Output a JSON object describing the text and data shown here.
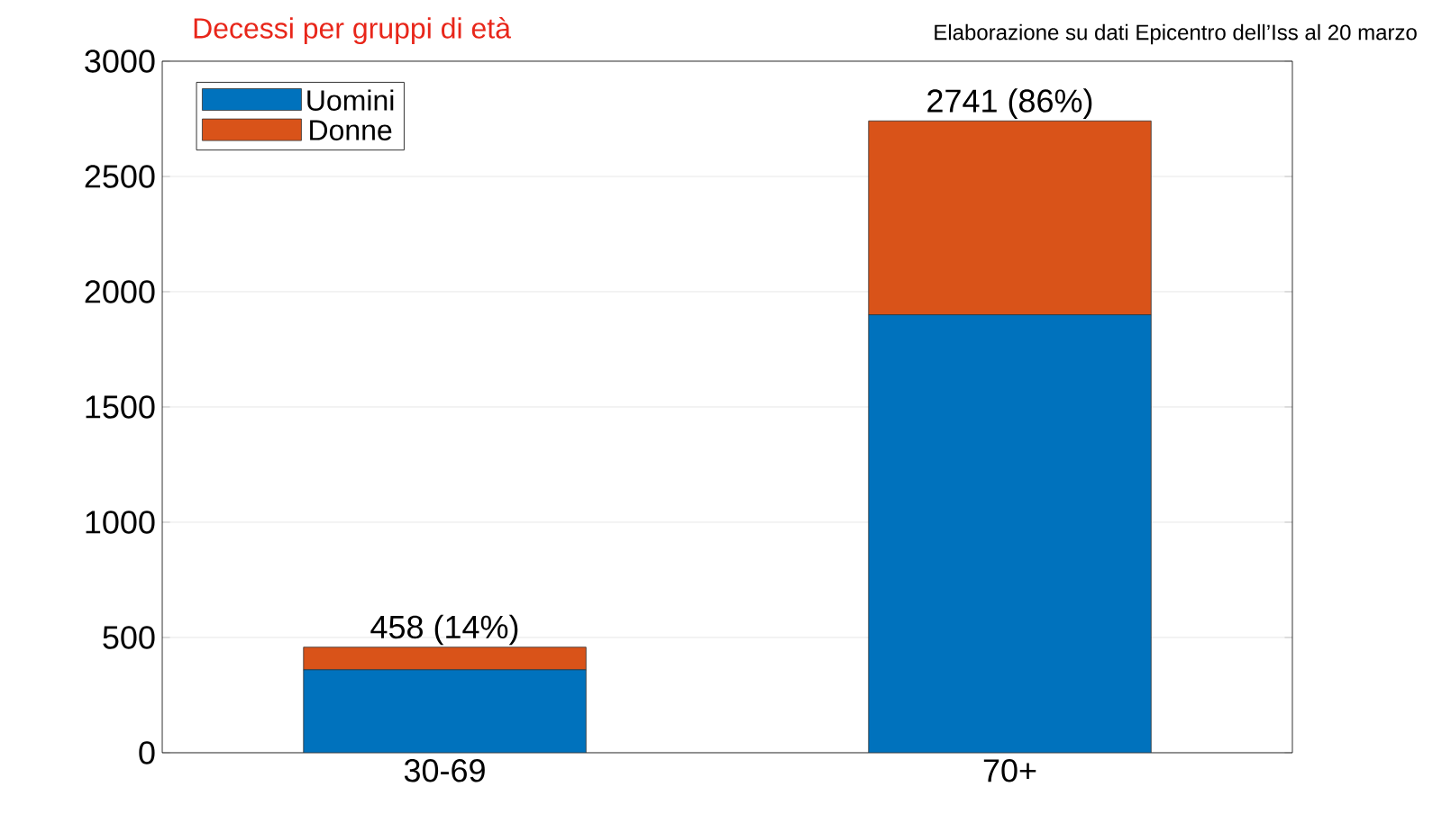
{
  "chart_data": {
    "type": "bar",
    "stacked": true,
    "title": "Decessi per gruppi di età",
    "annotations": [
      "Elaborazione su dati Epicentro dell’Iss al 20 marzo"
    ],
    "categories": [
      "30-69",
      "70+"
    ],
    "series": [
      {
        "name": "Uomini",
        "color": "#0072bd",
        "values": [
          360,
          1900
        ]
      },
      {
        "name": "Donne",
        "color": "#d95319",
        "values": [
          98,
          841
        ]
      }
    ],
    "totals": [
      "458 (14%)",
      "2741 (86%)"
    ],
    "ylim": [
      0,
      3000
    ],
    "yticks": [
      0,
      500,
      1000,
      1500,
      2000,
      2500,
      3000
    ],
    "grid": "y",
    "legend": "top left"
  }
}
